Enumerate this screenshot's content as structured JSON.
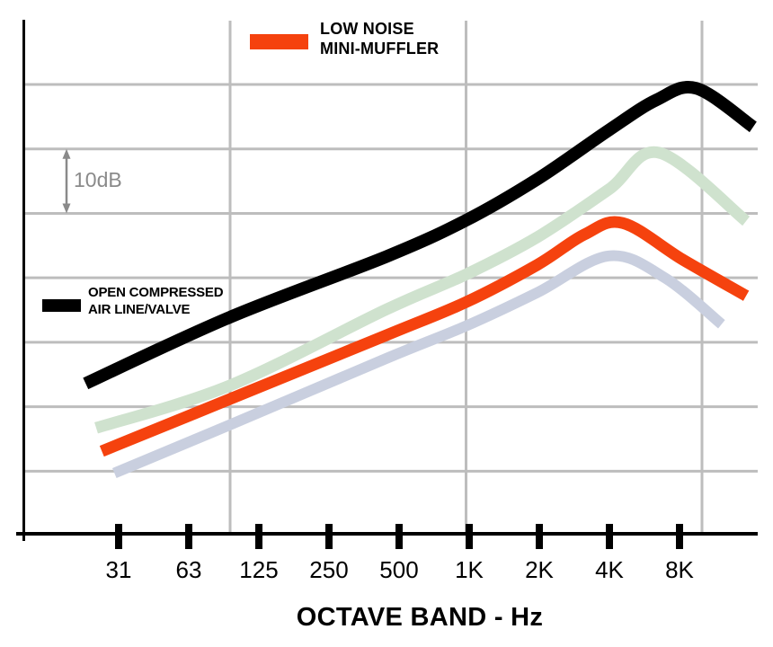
{
  "legend": {
    "muffler": {
      "line1": "LOW NOISE",
      "line2": "MINI-MUFFLER",
      "color": "#F5420E"
    },
    "open_line": {
      "line1": "OPEN COMPRESSED",
      "line2": "AIR LINE/VALVE",
      "color": "#000000"
    }
  },
  "scale_annotation": {
    "label": "10dB",
    "color": "#8A8A8A"
  },
  "chart_data": {
    "type": "line",
    "title": "",
    "xlabel": "OCTAVE BAND - Hz",
    "ylabel": "",
    "x_categories": [
      "31",
      "63",
      "125",
      "250",
      "500",
      "1K",
      "2K",
      "4K",
      "8K"
    ],
    "x_units": "octave band index (0 = 31 Hz ... 8 = 8 kHz); curves extend slightly beyond ticks",
    "y_units": "relative sound level in dB; no numeric y axis, one gridline row = 10 dB (marked by the 10dB arrow)",
    "grid": true,
    "grid_color": "#BDBDBD",
    "axis_color": "#000000",
    "legend_position": "open line legend at mid-left inside plot; muffler legend at top center",
    "series": [
      {
        "name": "OPEN COMPRESSED AIR LINE/VALVE",
        "color": "#000000",
        "stroke_width": 14,
        "points": [
          [
            -0.47,
            13.6
          ],
          [
            1.59,
            23.9
          ],
          [
            3.82,
            33.3
          ],
          [
            4.95,
            38.9
          ],
          [
            5.97,
            45.3
          ],
          [
            6.99,
            52.9
          ],
          [
            7.67,
            57.6
          ],
          [
            8.24,
            59.4
          ],
          [
            9.05,
            53.4
          ]
        ]
      },
      {
        "name": "unlabeled upper curve",
        "color": "#CFE2CE",
        "stroke_width": 13,
        "points": [
          [
            -0.32,
            6.7
          ],
          [
            1.59,
            13.3
          ],
          [
            3.82,
            25.1
          ],
          [
            4.95,
            30.5
          ],
          [
            5.97,
            36.3
          ],
          [
            6.99,
            43.7
          ],
          [
            7.71,
            49.4
          ],
          [
            8.95,
            38.8
          ]
        ]
      },
      {
        "name": "LOW NOISE MINI-MUFFLER",
        "color": "#F5420E",
        "stroke_width": 13,
        "points": [
          [
            -0.24,
            3.1
          ],
          [
            1.59,
            11.2
          ],
          [
            3.82,
            21.1
          ],
          [
            4.95,
            26.2
          ],
          [
            5.97,
            32.0
          ],
          [
            6.64,
            36.7
          ],
          [
            7.19,
            38.5
          ],
          [
            8.05,
            32.8
          ],
          [
            8.95,
            27.2
          ]
        ]
      },
      {
        "name": "unlabeled lower curve",
        "color": "#C9CFDF",
        "stroke_width": 12,
        "points": [
          [
            -0.06,
            -0.3
          ],
          [
            1.59,
            7.2
          ],
          [
            3.82,
            17.5
          ],
          [
            4.95,
            22.5
          ],
          [
            5.97,
            27.7
          ],
          [
            6.99,
            33.4
          ],
          [
            7.79,
            30.0
          ],
          [
            8.6,
            22.8
          ]
        ]
      }
    ],
    "annotations": [
      {
        "text": "10dB",
        "meaning": "double-headed arrow spanning one horizontal gridline interval"
      }
    ]
  }
}
